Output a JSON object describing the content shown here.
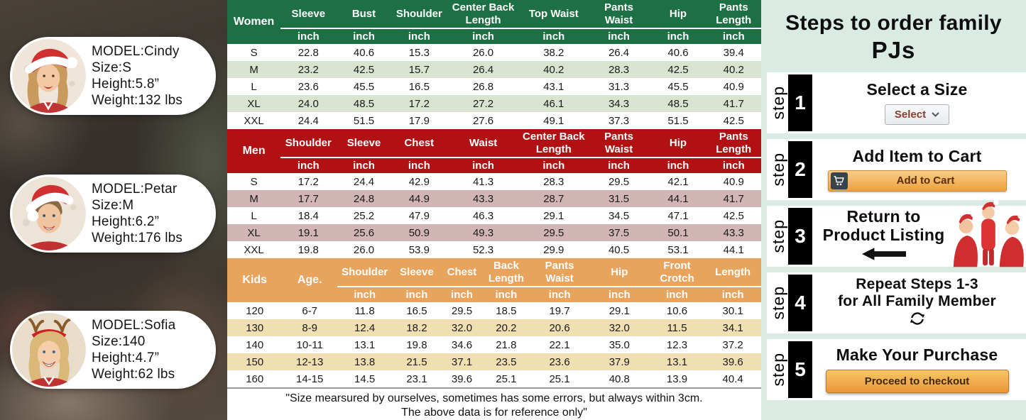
{
  "left_panel": {
    "models": [
      {
        "model": "MODEL:Cindy",
        "size": "Size:S",
        "height": "Height:5.8”",
        "weight": "Weight:132 lbs"
      },
      {
        "model": "MODEL:Petar",
        "size": "Size:M",
        "height": "Height:6.2”",
        "weight": "Weight:176 lbs"
      },
      {
        "model": "MODEL:Sofia",
        "size": "Size:140",
        "height": "Height:4.7”",
        "weight": "Weight:62 lbs"
      }
    ]
  },
  "size_charts": {
    "women": {
      "corner": [
        "Women"
      ],
      "headers": [
        "Sleeve",
        "Bust",
        "Shoulder",
        "Center Back Length",
        "Top Waist",
        "Pants Waist",
        "Hip",
        "Pants Length"
      ],
      "unit": "inch",
      "rows": [
        [
          "S",
          "22.8",
          "40.6",
          "15.3",
          "26.0",
          "38.2",
          "26.4",
          "40.6",
          "39.4"
        ],
        [
          "M",
          "23.2",
          "42.5",
          "15.7",
          "26.4",
          "40.2",
          "28.3",
          "42.5",
          "40.2"
        ],
        [
          "L",
          "23.6",
          "45.5",
          "16.5",
          "26.8",
          "43.1",
          "31.3",
          "45.5",
          "40.9"
        ],
        [
          "XL",
          "24.0",
          "48.5",
          "17.2",
          "27.2",
          "46.1",
          "34.3",
          "48.5",
          "41.7"
        ],
        [
          "XXL",
          "24.4",
          "51.5",
          "17.9",
          "27.6",
          "49.1",
          "37.3",
          "51.5",
          "42.5"
        ]
      ],
      "header_color": "#1d7044",
      "zebra_color": "#d8e4d0"
    },
    "men": {
      "corner": [
        "Men"
      ],
      "headers": [
        "Shoulder",
        "Sleeve",
        "Chest",
        "Waist",
        "Center Back Length",
        "Pants Waist",
        "Hip",
        "Pants Length"
      ],
      "unit": "inch",
      "rows": [
        [
          "S",
          "17.2",
          "24.4",
          "42.9",
          "41.3",
          "28.3",
          "29.5",
          "42.1",
          "40.9"
        ],
        [
          "M",
          "17.7",
          "24.8",
          "44.9",
          "43.3",
          "28.7",
          "31.5",
          "44.1",
          "41.7"
        ],
        [
          "L",
          "18.4",
          "25.2",
          "47.9",
          "46.3",
          "29.1",
          "34.5",
          "47.1",
          "42.5"
        ],
        [
          "XL",
          "19.1",
          "25.6",
          "50.9",
          "49.3",
          "29.5",
          "37.5",
          "50.1",
          "43.3"
        ],
        [
          "XXL",
          "19.8",
          "26.0",
          "53.9",
          "52.3",
          "29.9",
          "40.5",
          "53.1",
          "44.1"
        ]
      ],
      "header_color": "#b11112",
      "zebra_color": "#d2b6b6"
    },
    "kids": {
      "corner": [
        "Kids",
        "Age."
      ],
      "headers": [
        "Shoulder",
        "Sleeve",
        "Chest",
        "Back Length",
        "Pants Waist",
        "Hip",
        "Front Crotch",
        "Length"
      ],
      "unit": "inch",
      "rows": [
        [
          "120",
          "6-7",
          "11.8",
          "16.5",
          "29.5",
          "18.5",
          "19.7",
          "29.1",
          "10.6",
          "30.1"
        ],
        [
          "130",
          "8-9",
          "12.4",
          "18.2",
          "32.0",
          "20.2",
          "20.6",
          "32.0",
          "11.5",
          "34.1"
        ],
        [
          "140",
          "10-11",
          "13.1",
          "19.8",
          "34.6",
          "21.8",
          "22.1",
          "35.0",
          "12.3",
          "37.2"
        ],
        [
          "150",
          "12-13",
          "13.8",
          "21.5",
          "37.1",
          "23.5",
          "23.6",
          "37.9",
          "13.1",
          "39.6"
        ],
        [
          "160",
          "14-15",
          "14.5",
          "23.1",
          "39.6",
          "25.1",
          "25.1",
          "40.8",
          "13.9",
          "40.4"
        ]
      ],
      "header_color": "#e8a35c",
      "zebra_color": "#f0dfb0"
    },
    "footnote_line1": "\"Size mearsured by ourselves, sometimes has some errors, but always within 3cm.",
    "footnote_line2": "The above data is for reference only\""
  },
  "steps_panel": {
    "background_color": "#d9ebe2",
    "title_line1": "Steps to order family",
    "title_line2": "PJs",
    "step_word": "step",
    "steps": [
      {
        "number": "1",
        "title": "Select a Size",
        "select_label": "Select"
      },
      {
        "number": "2",
        "title": "Add Item to Cart",
        "button_label": "Add to Cart"
      },
      {
        "number": "3",
        "title_line1": "Return to",
        "title_line2": "Product Listing"
      },
      {
        "number": "4",
        "title_line1": "Repeat Steps 1-3",
        "title_line2": "for All Family Member"
      },
      {
        "number": "5",
        "title": "Make Your Purchase",
        "button_label": "Proceed to checkout"
      }
    ]
  },
  "icons": {
    "chevron_down": "▾",
    "cart": "shopping-cart",
    "left_arrow": "←",
    "repeat": "⟳"
  }
}
